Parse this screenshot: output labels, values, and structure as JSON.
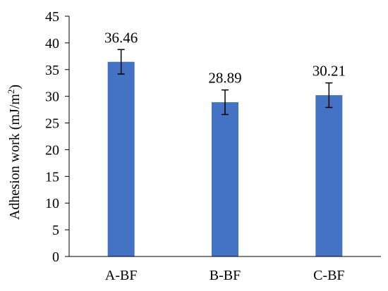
{
  "chart_data": {
    "type": "bar",
    "title": "",
    "xlabel": "",
    "ylabel": "Adhesion work (mJ/m",
    "ylabel_superscript": "2",
    "ylabel_suffix": ")",
    "categories": [
      "A-BF",
      "B-BF",
      "C-BF"
    ],
    "values": [
      36.46,
      28.89,
      30.21
    ],
    "value_labels": [
      "36.46",
      "28.89",
      "30.21"
    ],
    "error_bars": [
      2.3,
      2.3,
      2.3
    ],
    "ylim": [
      0,
      45
    ],
    "yticks": [
      "0",
      "5",
      "10",
      "15",
      "20",
      "25",
      "30",
      "35",
      "40",
      "45"
    ],
    "grid": false,
    "legend": "none",
    "bar_color": "#4472C4",
    "axis_color": "#000000"
  }
}
